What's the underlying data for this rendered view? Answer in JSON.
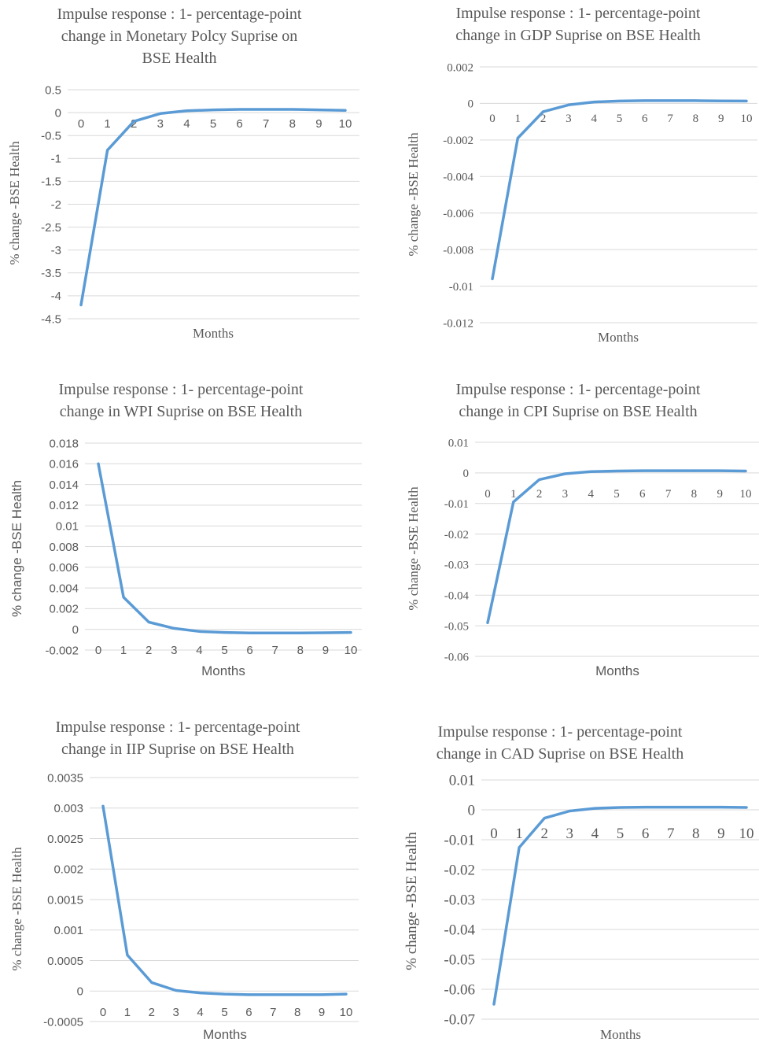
{
  "chart_data": [
    {
      "type": "line",
      "title_lines": [
        "Impulse response : 1- percentage-point",
        "change in Monetary Polcy Suprise on",
        "BSE Health"
      ],
      "xlabel": "Months",
      "ylabel": "% change -BSE Health",
      "categories": [
        "0",
        "1",
        "2",
        "3",
        "4",
        "5",
        "6",
        "7",
        "8",
        "9",
        "10"
      ],
      "y_ticks": [
        "0.5",
        "0",
        "-0.5",
        "-1",
        "-1.5",
        "-2",
        "-2.5",
        "-3",
        "-3.5",
        "-4",
        "-4.5"
      ],
      "ylim": [
        -4.5,
        0.5
      ],
      "values": [
        -4.2,
        -0.82,
        -0.19,
        -0.02,
        0.04,
        0.06,
        0.07,
        0.07,
        0.07,
        0.06,
        0.05
      ],
      "grid": true,
      "color": "#5B9BD5"
    },
    {
      "type": "line",
      "title_lines": [
        "Impulse response : 1- percentage-point",
        "change in GDP Suprise on BSE Health"
      ],
      "xlabel": "Months",
      "ylabel": "% change -BSE Health",
      "categories": [
        "0",
        "1",
        "2",
        "3",
        "4",
        "5",
        "6",
        "7",
        "8",
        "9",
        "10"
      ],
      "y_ticks": [
        "0.002",
        "0",
        "-0.002",
        "-0.004",
        "-0.006",
        "-0.008",
        "-0.01",
        "-0.012"
      ],
      "ylim": [
        -0.012,
        0.002
      ],
      "values": [
        -0.0096,
        -0.0019,
        -0.00045,
        -8e-05,
        8e-05,
        0.00013,
        0.00015,
        0.00015,
        0.00015,
        0.00014,
        0.00013
      ],
      "grid": true,
      "color": "#5B9BD5"
    },
    {
      "type": "line",
      "title_lines": [
        "Impulse response : 1- percentage-point",
        "change in WPI Suprise on BSE Health"
      ],
      "xlabel": "Months",
      "ylabel": "% change -BSE  Health",
      "categories": [
        "0",
        "1",
        "2",
        "3",
        "4",
        "5",
        "6",
        "7",
        "8",
        "9",
        "10"
      ],
      "y_ticks": [
        "0.018",
        "0.016",
        "0.014",
        "0.012",
        "0.01",
        "0.008",
        "0.006",
        "0.004",
        "0.002",
        "0",
        "-0.002"
      ],
      "ylim": [
        -0.002,
        0.018
      ],
      "values": [
        0.016,
        0.0031,
        0.0007,
        0.0001,
        -0.0002,
        -0.0003,
        -0.00035,
        -0.00035,
        -0.00035,
        -0.00033,
        -0.0003
      ],
      "grid": true,
      "color": "#5B9BD5"
    },
    {
      "type": "line",
      "title_lines": [
        "Impulse response : 1- percentage-point",
        "change in CPI Suprise on BSE Health"
      ],
      "xlabel": "Months",
      "ylabel": "% change -BSE  Health",
      "categories": [
        "0",
        "1",
        "2",
        "3",
        "4",
        "5",
        "6",
        "7",
        "8",
        "9",
        "10"
      ],
      "y_ticks": [
        "0.01",
        "0",
        "-0.01",
        "-0.02",
        "-0.03",
        "-0.04",
        "-0.05",
        "-0.06"
      ],
      "ylim": [
        -0.06,
        0.01
      ],
      "values": [
        -0.049,
        -0.0095,
        -0.0022,
        -0.0003,
        0.0004,
        0.0006,
        0.0007,
        0.0007,
        0.0007,
        0.0007,
        0.0006
      ],
      "grid": true,
      "color": "#5B9BD5"
    },
    {
      "type": "line",
      "title_lines": [
        "Impulse response : 1- percentage-point",
        "change in IIP Suprise on BSE Health"
      ],
      "xlabel": "Months",
      "ylabel": "% change -BSE  Health",
      "categories": [
        "0",
        "1",
        "2",
        "3",
        "4",
        "5",
        "6",
        "7",
        "8",
        "9",
        "10"
      ],
      "y_ticks": [
        "0.0035",
        "0.003",
        "0.0025",
        "0.002",
        "0.0015",
        "0.001",
        "0.0005",
        "0",
        "-0.0005"
      ],
      "ylim": [
        -0.0005,
        0.0035
      ],
      "values": [
        0.00303,
        0.00059,
        0.00014,
        1e-05,
        -3e-05,
        -5e-05,
        -6e-05,
        -6e-05,
        -6e-05,
        -6e-05,
        -5e-05
      ],
      "grid": true,
      "color": "#5B9BD5"
    },
    {
      "type": "line",
      "title_lines": [
        "Impulse response : 1- percentage-point",
        "change in CAD Suprise on BSE Health"
      ],
      "xlabel": "Months",
      "ylabel": "% change -BSE  Health",
      "categories": [
        "0",
        "1",
        "2",
        "3",
        "4",
        "5",
        "6",
        "7",
        "8",
        "9",
        "10"
      ],
      "y_ticks": [
        "0.01",
        "0",
        "-0.01",
        "-0.02",
        "-0.03",
        "-0.04",
        "-0.05",
        "-0.06",
        "-0.07"
      ],
      "ylim": [
        -0.07,
        0.01
      ],
      "values": [
        -0.065,
        -0.0126,
        -0.0028,
        -0.0004,
        0.0005,
        0.0008,
        0.0009,
        0.0009,
        0.0009,
        0.0009,
        0.0008
      ],
      "grid": true,
      "color": "#5B9BD5"
    }
  ]
}
